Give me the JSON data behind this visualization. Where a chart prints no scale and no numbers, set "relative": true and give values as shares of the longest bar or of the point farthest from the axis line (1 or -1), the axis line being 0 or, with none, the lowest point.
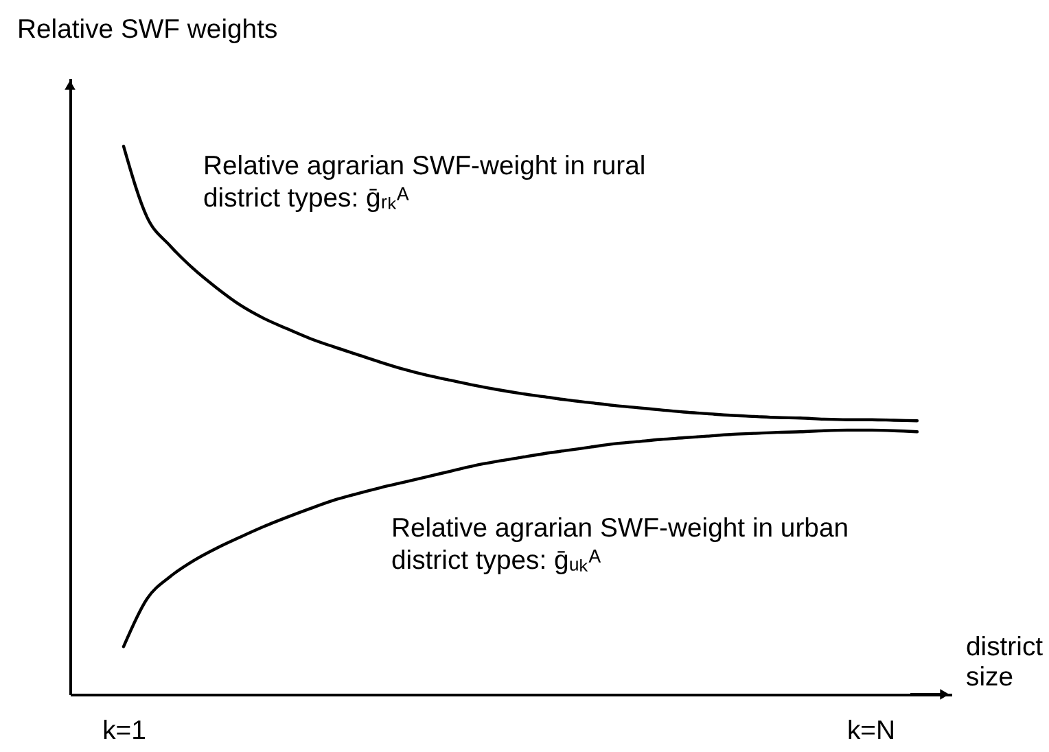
{
  "chart_data": {
    "type": "line",
    "relative": true,
    "ylabel": "Relative SWF weights",
    "xlabel": "district\nsize",
    "categories": [
      "k=1",
      null,
      null,
      null,
      null,
      null,
      null,
      null,
      null,
      null,
      null,
      null,
      null,
      null,
      null,
      null,
      null,
      null,
      null,
      null,
      null,
      null,
      null,
      null,
      null,
      null,
      null,
      null,
      null,
      null,
      null,
      null,
      "k=N",
      null,
      null
    ],
    "series": [
      {
        "name": "Relative agrarian SWF-weight in rural\ndistrict types: ḡᵣₖᴬ",
        "color": "#000000",
        "values": [
          1.0,
          0.871,
          0.818,
          0.776,
          0.741,
          0.71,
          0.686,
          0.667,
          0.649,
          0.634,
          0.62,
          0.606,
          0.593,
          0.582,
          0.573,
          0.564,
          0.556,
          0.549,
          0.543,
          0.537,
          0.532,
          0.527,
          0.523,
          0.519,
          0.515,
          0.512,
          0.509,
          0.507,
          0.505,
          0.504,
          0.502,
          0.501,
          0.501,
          0.5,
          0.499
        ]
      },
      {
        "name": "Relative agrarian SWF-weight in urban\ndistrict types: ḡᵤₖᴬ",
        "color": "#000000",
        "values": [
          0.087,
          0.174,
          0.215,
          0.244,
          0.267,
          0.287,
          0.306,
          0.323,
          0.339,
          0.354,
          0.366,
          0.377,
          0.387,
          0.397,
          0.407,
          0.417,
          0.425,
          0.432,
          0.439,
          0.445,
          0.451,
          0.457,
          0.461,
          0.465,
          0.468,
          0.471,
          0.474,
          0.476,
          0.478,
          0.479,
          0.481,
          0.482,
          0.482,
          0.481,
          0.479
        ]
      }
    ],
    "legend": false,
    "grid": false,
    "marker": "none",
    "line_style": "solid"
  }
}
